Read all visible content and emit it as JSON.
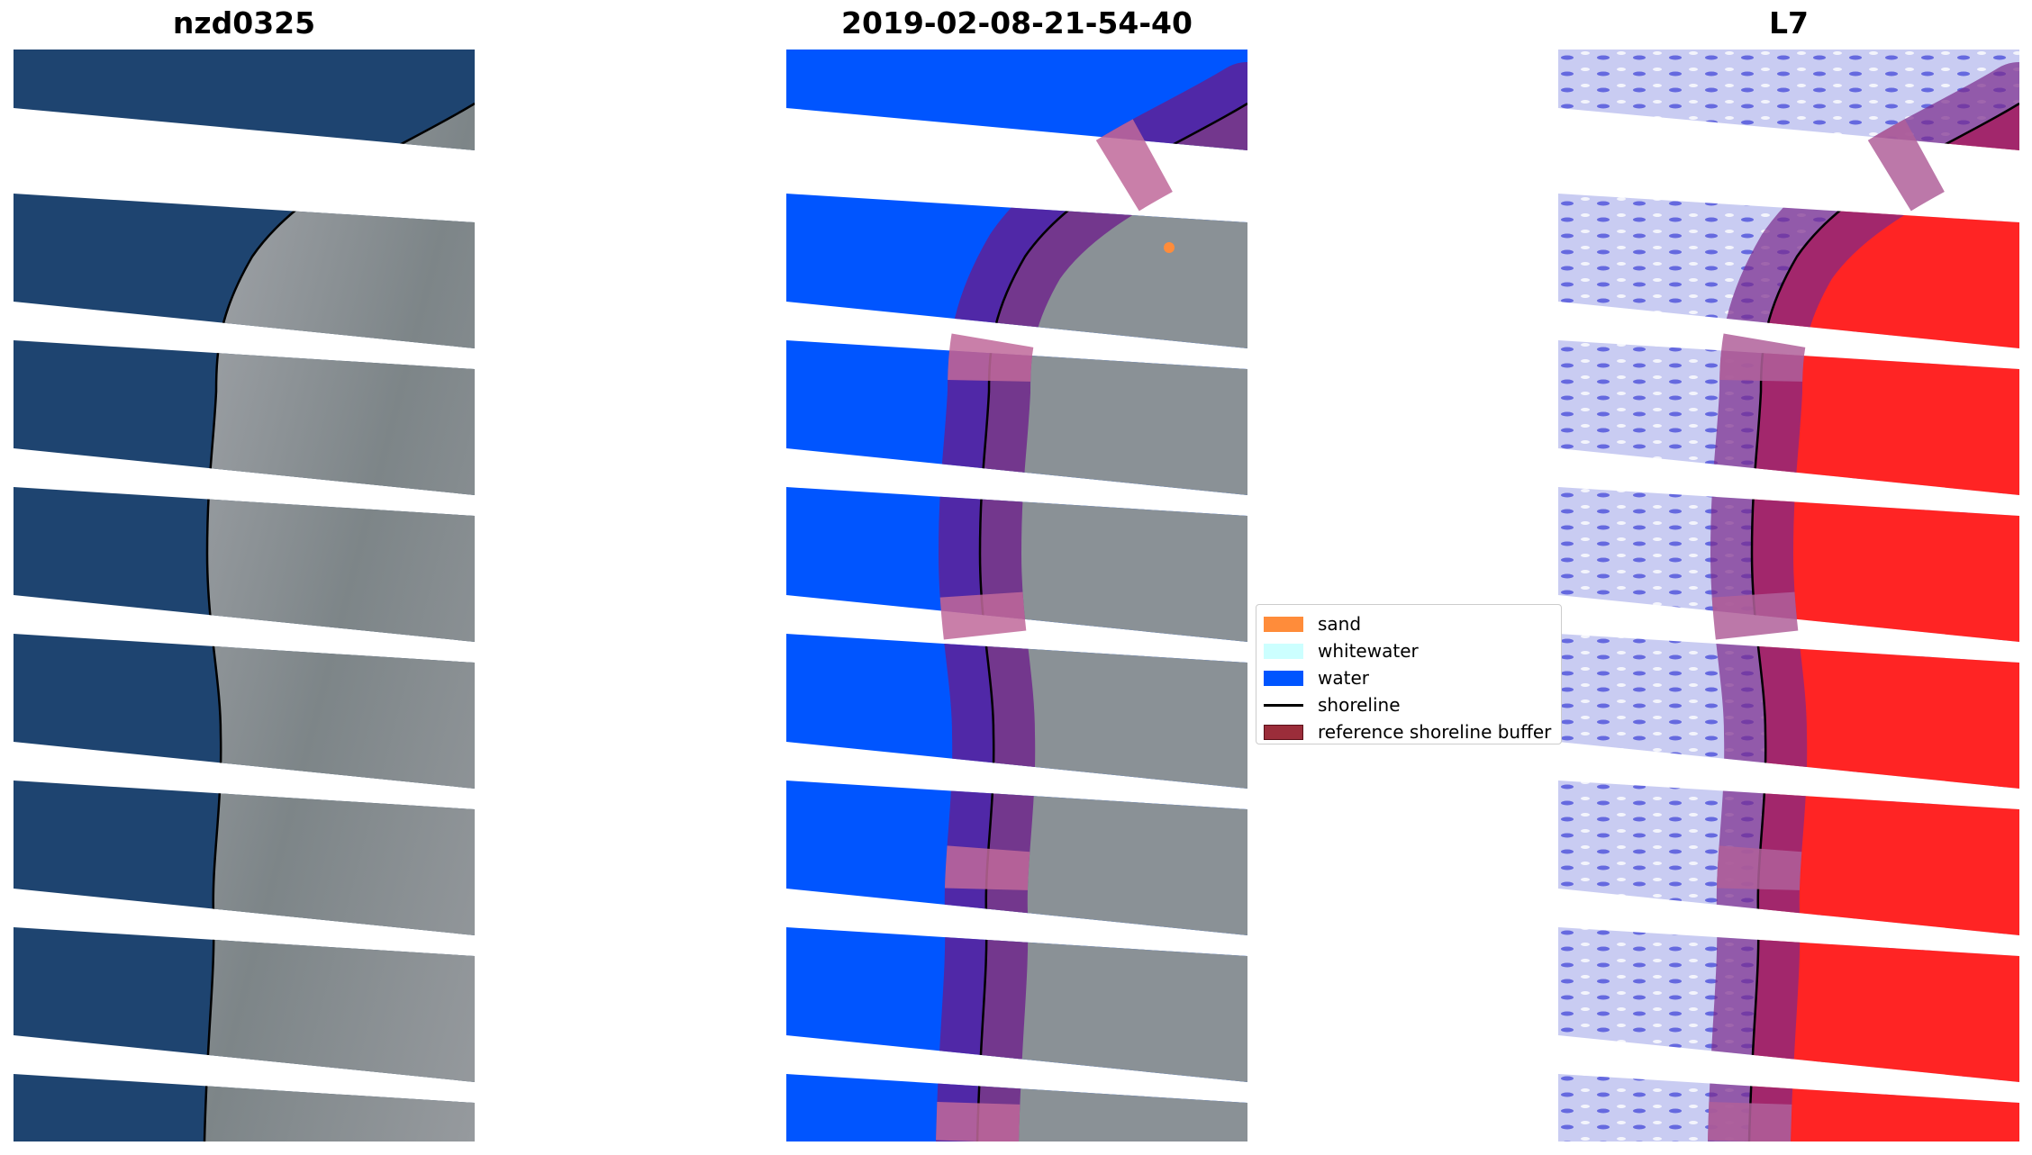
{
  "panels": [
    {
      "title": "nzd0325"
    },
    {
      "title": "2019-02-08-21-54-40"
    },
    {
      "title": "L7"
    }
  ],
  "legend": {
    "items": [
      {
        "label": "sand",
        "color": "#ff8c3a",
        "kind": "patch"
      },
      {
        "label": "whitewater",
        "color": "#ccffff",
        "kind": "patch"
      },
      {
        "label": "water",
        "color": "#0055ff",
        "kind": "patch"
      },
      {
        "label": "shoreline",
        "color": "#000000",
        "kind": "line"
      },
      {
        "label": "reference shoreline buffer",
        "color": "#9b2d3a",
        "kind": "patch"
      }
    ]
  },
  "colors": {
    "ocean": "#1d3f6b",
    "land": "#8e959a",
    "water_class": "#0055ff",
    "buffer": "#b5497f",
    "index_water": "#c9ccf2",
    "index_land": "#ff1a1a",
    "shoreline": "#000000"
  }
}
